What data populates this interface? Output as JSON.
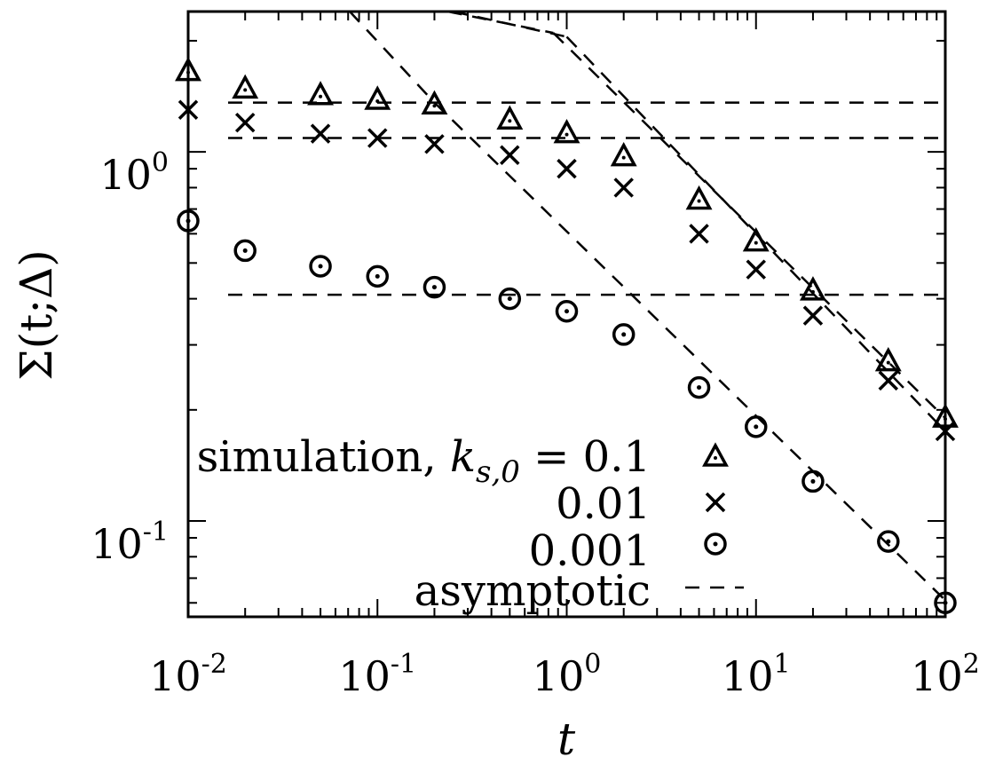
{
  "chart_data": {
    "type": "scatter",
    "title": "",
    "xlabel": "t",
    "ylabel": "Σ(t;Δ)",
    "xscale": "log",
    "yscale": "log",
    "xlim": [
      0.01,
      100
    ],
    "ylim": [
      0.055,
      2.4
    ],
    "x_ticks": [
      {
        "base": "10",
        "exp": "-2"
      },
      {
        "base": "10",
        "exp": "-1"
      },
      {
        "base": "10",
        "exp": "0"
      },
      {
        "base": "10",
        "exp": "1"
      },
      {
        "base": "10",
        "exp": "2"
      }
    ],
    "y_ticks": [
      {
        "value": 0.1,
        "base": "10",
        "exp": "-1"
      },
      {
        "value": 1,
        "base": "10",
        "exp": "0"
      }
    ],
    "grid": false,
    "legend_position": "bottom-center",
    "legend": {
      "prefix": "simulation, ",
      "k_symbol": "k",
      "k_subscript": "s,0",
      "equals": " = "
    },
    "series": [
      {
        "name": "0.1",
        "marker": "triangle",
        "x": [
          0.01,
          0.02,
          0.05,
          0.1,
          0.2,
          0.5,
          1,
          2,
          5,
          10,
          20,
          50,
          100
        ],
        "y": [
          1.65,
          1.48,
          1.42,
          1.38,
          1.34,
          1.22,
          1.12,
          0.97,
          0.74,
          0.57,
          0.42,
          0.27,
          0.19
        ]
      },
      {
        "name": "0.01",
        "marker": "cross",
        "x": [
          0.01,
          0.02,
          0.05,
          0.1,
          0.2,
          0.5,
          1,
          2,
          5,
          10,
          20,
          50,
          100
        ],
        "y": [
          1.3,
          1.2,
          1.12,
          1.09,
          1.05,
          0.98,
          0.9,
          0.8,
          0.6,
          0.48,
          0.36,
          0.24,
          0.175
        ]
      },
      {
        "name": "0.001",
        "marker": "circle",
        "x": [
          0.01,
          0.02,
          0.05,
          0.1,
          0.2,
          0.5,
          1,
          2,
          5,
          10,
          20,
          50,
          100
        ],
        "y": [
          0.65,
          0.54,
          0.49,
          0.46,
          0.43,
          0.4,
          0.37,
          0.32,
          0.23,
          0.18,
          0.128,
          0.088,
          0.06
        ]
      }
    ],
    "asymptotic": {
      "name": "asymptotic",
      "horizontal": [
        1.36,
        1.09,
        0.41
      ],
      "power_lines": [
        {
          "x": [
            0.0714,
            0.2
          ],
          "y": [
            2.4,
            1.36
          ]
        },
        {
          "x": [
            0.2,
            100
          ],
          "y": [
            1.36,
            0.061
          ]
        },
        {
          "x": [
            0.2355,
            0.85
          ],
          "y": [
            2.4,
            2.1
          ]
        },
        {
          "x": [
            0.85,
            100
          ],
          "y": [
            2.1,
            0.19
          ]
        },
        {
          "x": [
            0.2514,
            1.0
          ],
          "y": [
            2.4,
            2.05
          ]
        },
        {
          "x": [
            1.0,
            100
          ],
          "y": [
            2.05,
            0.175
          ]
        }
      ]
    }
  }
}
